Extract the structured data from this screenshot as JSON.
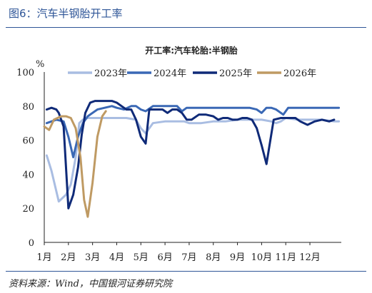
{
  "figure": {
    "title": "图6：汽车半钢胎开工率",
    "source": "资料来源：Wind，中国银河证券研究院"
  },
  "chart_data": {
    "type": "line",
    "title": "开工率:汽车轮胎:半钢胎",
    "yunit": "%",
    "ylim": [
      0,
      100
    ],
    "yticks": [
      0,
      20,
      40,
      60,
      80,
      100
    ],
    "x_range": [
      1,
      13.3
    ],
    "categories": [
      "1月",
      "2月",
      "3月",
      "4月",
      "5月",
      "6月",
      "7月",
      "8月",
      "9月",
      "10月",
      "11月",
      "12月"
    ],
    "grid": false,
    "legend_position": "top",
    "series": [
      {
        "name": "2023年",
        "color": "#a9bde2",
        "points": [
          [
            1.1,
            51
          ],
          [
            1.3,
            42
          ],
          [
            1.6,
            24
          ],
          [
            1.9,
            28
          ],
          [
            2.1,
            34
          ],
          [
            2.3,
            50
          ],
          [
            2.45,
            70
          ],
          [
            2.6,
            72
          ],
          [
            2.8,
            73
          ],
          [
            3.2,
            73
          ],
          [
            3.6,
            73
          ],
          [
            4.0,
            73
          ],
          [
            4.4,
            73
          ],
          [
            4.8,
            72
          ],
          [
            5.0,
            67
          ],
          [
            5.2,
            64
          ],
          [
            5.5,
            70
          ],
          [
            6.0,
            71
          ],
          [
            6.5,
            71
          ],
          [
            6.8,
            71
          ],
          [
            7.0,
            70
          ],
          [
            7.5,
            70
          ],
          [
            8.0,
            71
          ],
          [
            8.5,
            71
          ],
          [
            9.0,
            72
          ],
          [
            9.5,
            72
          ],
          [
            10.0,
            72
          ],
          [
            10.4,
            71
          ],
          [
            10.6,
            70
          ],
          [
            10.8,
            71
          ],
          [
            11.0,
            73
          ],
          [
            11.5,
            72
          ],
          [
            12.0,
            72
          ],
          [
            12.5,
            72
          ],
          [
            13.0,
            71
          ],
          [
            13.2,
            71
          ]
        ]
      },
      {
        "name": "2024年",
        "color": "#3a68b5",
        "points": [
          [
            1.1,
            70
          ],
          [
            1.5,
            72
          ],
          [
            1.8,
            71
          ],
          [
            2.0,
            62
          ],
          [
            2.2,
            50
          ],
          [
            2.4,
            62
          ],
          [
            2.6,
            70
          ],
          [
            2.8,
            74
          ],
          [
            3.2,
            78
          ],
          [
            3.5,
            79
          ],
          [
            3.8,
            80
          ],
          [
            4.0,
            79
          ],
          [
            4.3,
            78
          ],
          [
            4.6,
            80
          ],
          [
            4.8,
            80
          ],
          [
            5.0,
            78
          ],
          [
            5.2,
            77
          ],
          [
            5.5,
            80
          ],
          [
            5.8,
            80
          ],
          [
            6.2,
            80
          ],
          [
            6.5,
            80
          ],
          [
            6.7,
            77
          ],
          [
            6.9,
            79
          ],
          [
            7.2,
            79
          ],
          [
            7.6,
            79
          ],
          [
            8.0,
            79
          ],
          [
            8.5,
            79
          ],
          [
            9.0,
            79
          ],
          [
            9.5,
            79
          ],
          [
            9.8,
            78
          ],
          [
            10.0,
            76
          ],
          [
            10.2,
            79
          ],
          [
            10.4,
            79
          ],
          [
            10.6,
            78
          ],
          [
            10.9,
            75
          ],
          [
            11.1,
            79
          ],
          [
            11.5,
            79
          ],
          [
            12.0,
            79
          ],
          [
            12.5,
            79
          ],
          [
            13.0,
            79
          ],
          [
            13.2,
            79
          ]
        ]
      },
      {
        "name": "2025年",
        "color": "#0f2a78",
        "points": [
          [
            1.1,
            78
          ],
          [
            1.3,
            79
          ],
          [
            1.5,
            78
          ],
          [
            1.6,
            76
          ],
          [
            1.8,
            68
          ],
          [
            2.0,
            20
          ],
          [
            2.2,
            28
          ],
          [
            2.4,
            44
          ],
          [
            2.55,
            63
          ],
          [
            2.7,
            76
          ],
          [
            2.9,
            82
          ],
          [
            3.1,
            83
          ],
          [
            3.5,
            83
          ],
          [
            3.8,
            83
          ],
          [
            4.0,
            82
          ],
          [
            4.2,
            80
          ],
          [
            4.4,
            78
          ],
          [
            4.6,
            78
          ],
          [
            4.8,
            72
          ],
          [
            5.0,
            62
          ],
          [
            5.2,
            58
          ],
          [
            5.35,
            78
          ],
          [
            5.6,
            78
          ],
          [
            5.9,
            78
          ],
          [
            6.1,
            76
          ],
          [
            6.3,
            78
          ],
          [
            6.5,
            78
          ],
          [
            6.7,
            76
          ],
          [
            6.9,
            72
          ],
          [
            7.1,
            72
          ],
          [
            7.4,
            75
          ],
          [
            7.7,
            75
          ],
          [
            8.0,
            74
          ],
          [
            8.2,
            72
          ],
          [
            8.4,
            73
          ],
          [
            8.6,
            73
          ],
          [
            8.8,
            72
          ],
          [
            9.0,
            72
          ],
          [
            9.2,
            73
          ],
          [
            9.4,
            73
          ],
          [
            9.6,
            72
          ],
          [
            9.8,
            67
          ],
          [
            10.0,
            57
          ],
          [
            10.2,
            46
          ],
          [
            10.5,
            72
          ],
          [
            10.8,
            73
          ],
          [
            11.1,
            73
          ],
          [
            11.4,
            73
          ],
          [
            11.6,
            71
          ],
          [
            11.9,
            69
          ],
          [
            12.2,
            71
          ],
          [
            12.5,
            72
          ],
          [
            12.8,
            71
          ],
          [
            13.0,
            72
          ]
        ]
      },
      {
        "name": "2026年",
        "color": "#bf9a63",
        "points": [
          [
            1.0,
            68
          ],
          [
            1.2,
            66
          ],
          [
            1.4,
            72
          ],
          [
            1.7,
            74
          ],
          [
            1.9,
            74
          ],
          [
            2.1,
            73
          ],
          [
            2.3,
            67
          ],
          [
            2.5,
            50
          ],
          [
            2.65,
            25
          ],
          [
            2.8,
            15
          ],
          [
            3.0,
            35
          ],
          [
            3.2,
            62
          ],
          [
            3.4,
            74
          ],
          [
            3.55,
            77
          ]
        ]
      }
    ]
  }
}
